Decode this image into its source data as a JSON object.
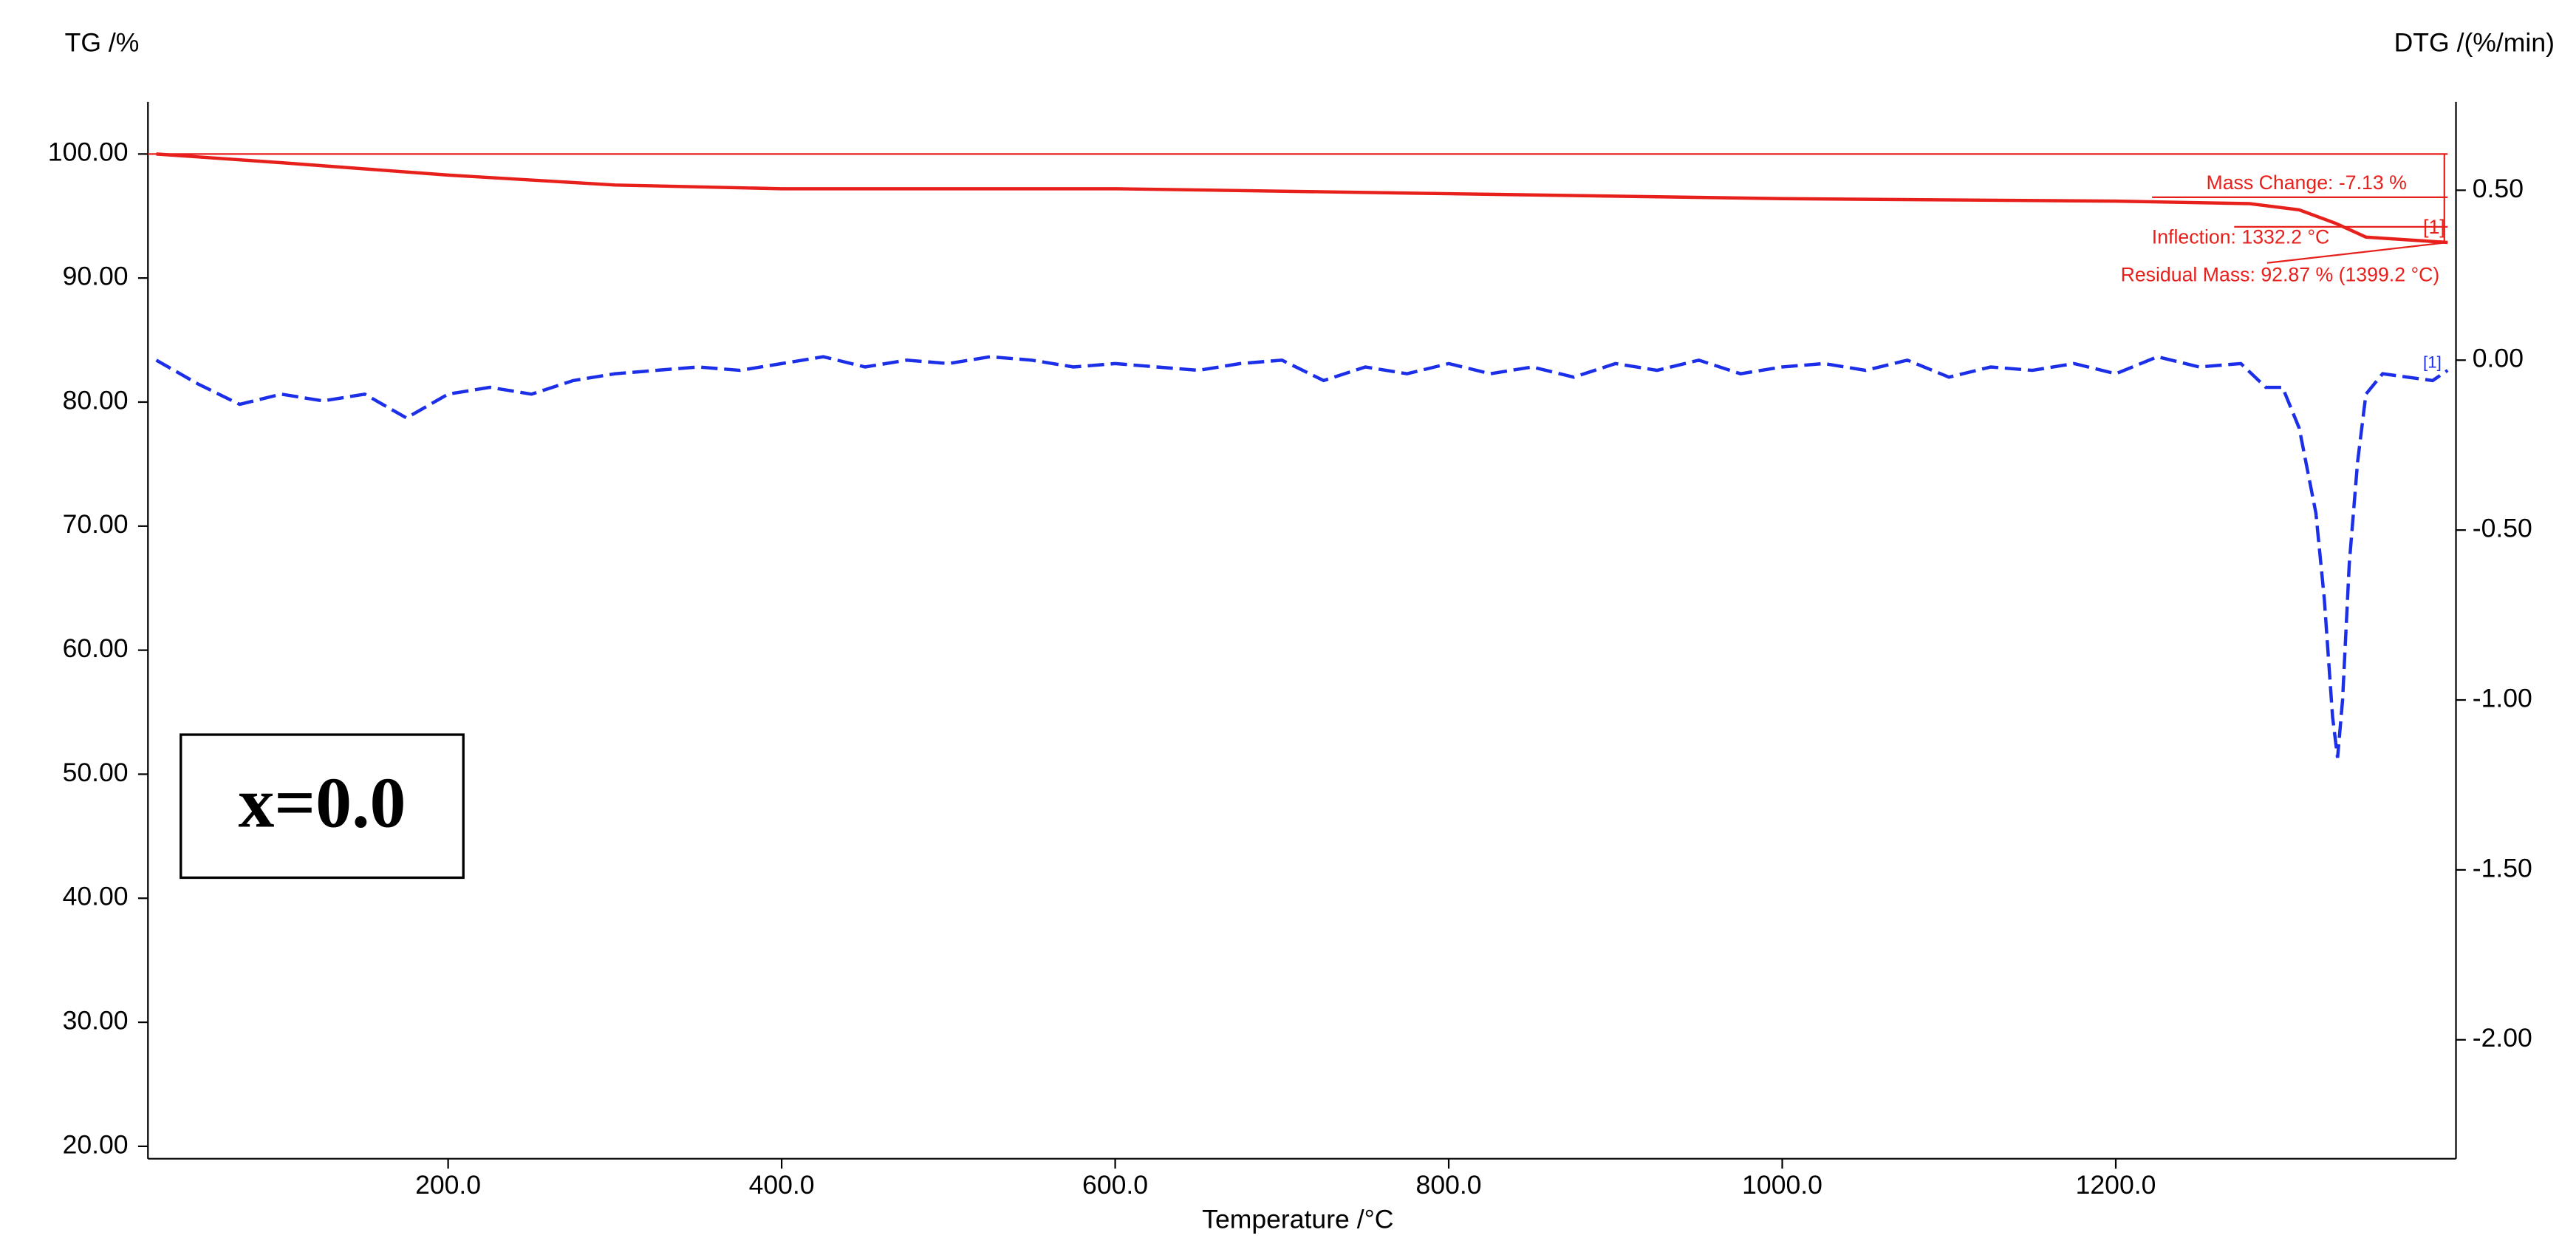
{
  "chart_data": {
    "type": "line",
    "y_label": "TG /%",
    "y2_label": "DTG /(%/min)",
    "x_label": "Temperature /°C",
    "xlim": [
      20,
      1404
    ],
    "xticks": [
      {
        "value": 200,
        "label": "200.0"
      },
      {
        "value": 400,
        "label": "400.0"
      },
      {
        "value": 600,
        "label": "600.0"
      },
      {
        "value": 800,
        "label": "800.0"
      },
      {
        "value": 1000,
        "label": "1000.0"
      },
      {
        "value": 1200,
        "label": "1200.0"
      }
    ],
    "ylim": [
      19,
      104.2
    ],
    "yticks": [
      {
        "value": 20,
        "label": "20.00"
      },
      {
        "value": 30,
        "label": "30.00"
      },
      {
        "value": 40,
        "label": "40.00"
      },
      {
        "value": 50,
        "label": "50.00"
      },
      {
        "value": 60,
        "label": "60.00"
      },
      {
        "value": 70,
        "label": "70.00"
      },
      {
        "value": 80,
        "label": "80.00"
      },
      {
        "value": 90,
        "label": "90.00"
      },
      {
        "value": 100,
        "label": "100.00"
      }
    ],
    "y2lim": [
      -2.35,
      0.76
    ],
    "y2ticks": [
      {
        "value": -2,
        "label": "-2.00"
      },
      {
        "value": -1.5,
        "label": "-1.50"
      },
      {
        "value": -1,
        "label": "-1.00"
      },
      {
        "value": -0.5,
        "label": "-0.50"
      },
      {
        "value": 0,
        "label": "0.00"
      },
      {
        "value": 0.5,
        "label": "0.50"
      }
    ],
    "series": [
      {
        "color": "#e8201c",
        "dash": false,
        "x": [
          25,
          100,
          200,
          300,
          400,
          600,
          800,
          1000,
          1200,
          1280,
          1310,
          1332,
          1350,
          1399
        ],
        "values": [
          100,
          99.3,
          98.3,
          97.5,
          97.2,
          97.2,
          96.8,
          96.4,
          96.2,
          96.0,
          95.5,
          94.4,
          93.3,
          92.87
        ]
      },
      {
        "color": "#1c2fe8",
        "dash": true,
        "axis": "y2",
        "x": [
          25,
          50,
          75,
          100,
          125,
          150,
          175,
          200,
          225,
          250,
          275,
          300,
          325,
          350,
          375,
          400,
          425,
          450,
          475,
          500,
          525,
          550,
          575,
          600,
          625,
          650,
          675,
          700,
          725,
          750,
          775,
          800,
          825,
          850,
          875,
          900,
          925,
          950,
          975,
          1000,
          1025,
          1050,
          1075,
          1100,
          1125,
          1150,
          1175,
          1200,
          1225,
          1250,
          1275,
          1290,
          1300,
          1310,
          1320,
          1325,
          1330,
          1333,
          1336,
          1340,
          1345,
          1350,
          1360,
          1375,
          1390,
          1399
        ],
        "values": [
          0.0,
          -0.07,
          -0.13,
          -0.1,
          -0.12,
          -0.1,
          -0.17,
          -0.1,
          -0.08,
          -0.1,
          -0.06,
          -0.04,
          -0.03,
          -0.02,
          -0.03,
          -0.01,
          0.01,
          -0.02,
          0.0,
          -0.01,
          0.01,
          0.0,
          -0.02,
          -0.01,
          -0.02,
          -0.03,
          -0.01,
          0.0,
          -0.06,
          -0.02,
          -0.04,
          -0.01,
          -0.04,
          -0.02,
          -0.05,
          -0.01,
          -0.03,
          0.0,
          -0.04,
          -0.02,
          -0.01,
          -0.03,
          0.0,
          -0.05,
          -0.02,
          -0.03,
          -0.01,
          -0.04,
          0.01,
          -0.02,
          -0.01,
          -0.08,
          -0.08,
          -0.2,
          -0.45,
          -0.7,
          -1.05,
          -1.17,
          -1.0,
          -0.6,
          -0.3,
          -0.1,
          -0.04,
          -0.05,
          -0.06,
          -0.03
        ]
      }
    ],
    "annotations": {
      "mass_change": "Mass Change: -7.13 %",
      "inflection": "Inflection: 1332.2 °C",
      "residual": "Residual Mass: 92.87 % (1399.2 °C)",
      "tg_marker": "[1]",
      "dtg_marker": "[1]"
    },
    "sample_label": "x=0.0"
  }
}
